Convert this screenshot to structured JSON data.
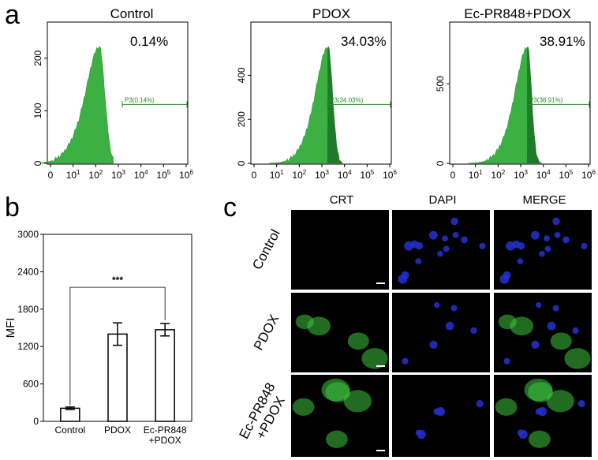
{
  "panels": {
    "a": "a",
    "b": "b",
    "c": "c"
  },
  "flow": [
    {
      "title": "Control",
      "percent": "0.14%",
      "gate": "P3(0.14%)",
      "y_ticks": [
        "0",
        "100",
        "200"
      ],
      "x_ticks": [
        "0",
        "10",
        "10",
        "10",
        "10",
        "10",
        "10"
      ],
      "x_exp": [
        "",
        "1",
        "2",
        "3",
        "4",
        "5",
        "6"
      ]
    },
    {
      "title": "PDOX",
      "percent": "34.03%",
      "gate": "P3(34.03%)",
      "y_ticks": [
        "0",
        "200",
        "400"
      ],
      "x_ticks": [
        "0",
        "10",
        "10",
        "10",
        "10",
        "10",
        "10"
      ],
      "x_exp": [
        "",
        "1",
        "2",
        "3",
        "4",
        "5",
        "6"
      ]
    },
    {
      "title": "Ec-PR848+PDOX",
      "percent": "38.91%",
      "gate": "P3(38.91%)",
      "y_ticks": [
        "0",
        "500"
      ],
      "x_ticks": [
        "0",
        "10",
        "10",
        "10",
        "10",
        "10",
        "10"
      ],
      "x_exp": [
        "",
        "1",
        "2",
        "3",
        "4",
        "5",
        "6"
      ]
    }
  ],
  "chart_data": {
    "type": "bar",
    "categories": [
      "Control",
      "PDOX",
      "Ec-PR848 +PDOX"
    ],
    "category_lines": [
      [
        "Control"
      ],
      [
        "PDOX"
      ],
      [
        "Ec-PR848",
        "+PDOX"
      ]
    ],
    "values": [
      210,
      1400,
      1470
    ],
    "errors": [
      20,
      180,
      100
    ],
    "ylabel": "MFI",
    "ylim": [
      0,
      3000
    ],
    "yticks": [
      0,
      600,
      1200,
      1800,
      2400,
      3000
    ],
    "significance": "***"
  },
  "microscopy": {
    "columns": [
      "CRT",
      "DAPI",
      "MERGE"
    ],
    "rows": [
      [
        "Control"
      ],
      [
        "PDOX"
      ],
      [
        "Ec-PR848",
        "+PDOX"
      ]
    ]
  },
  "colors": {
    "histogram": "#3cb043",
    "histogram_dark": "#1f7a2a",
    "gate": "#2a8a2a",
    "dapi": "#2430d0",
    "crt": "#3ec43e"
  }
}
